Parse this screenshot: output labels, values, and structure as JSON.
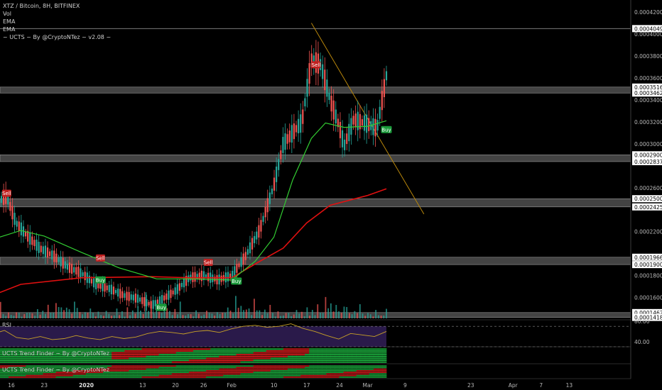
{
  "header": {
    "symbol_line": "XTZ / Bitcoin, 8H, BITFINEX",
    "ind_vol": "Vol",
    "ind_ema1": "EMA",
    "ind_ema2": "EMA",
    "ind_ucts": "~ UCTS ~ By @CryptoNTez ~ v2.08 ~"
  },
  "panels": {
    "rsi_label": "RSI",
    "rsi_ticks": [
      "80.00",
      "40.00"
    ],
    "trend1_label": "UCTS Trend Finder ~ By @CryptoNTez",
    "trend2_label": "UCTS Trend Finder ~ By @CryptoNTez"
  },
  "colors": {
    "background": "#000000",
    "candle_up": "#26a69a",
    "candle_down": "#ef5350",
    "ema_fast": "#32cd32",
    "ema_slow": "#e01010",
    "trendline": "#b8860b",
    "zone": "#5a5a5a",
    "rsi_bg": "#2a1a4a",
    "rsi_line": "#c9a227",
    "buy": "#1a9a3a",
    "sell": "#c0201f"
  },
  "chart_data": {
    "type": "candlestick",
    "title": "XTZ / Bitcoin, 8H, BITFINEX",
    "x_tick_labels": [
      "16",
      "23",
      "2020",
      "13",
      "20",
      "26",
      "Feb",
      "10",
      "17",
      "24",
      "Mar",
      "9",
      "23",
      "Apr",
      "7",
      "13"
    ],
    "y_tick_labels": [
      "0.00042000",
      "0.00040495",
      "0.00040000",
      "0.00038000",
      "0.00036000",
      "0.00035169",
      "0.00034624",
      "0.00034000",
      "0.00032000",
      "0.00030000",
      "0.00029000",
      "0.00028379",
      "0.00026000",
      "0.00025000",
      "0.00024254",
      "0.00022000",
      "0.00019668",
      "0.00019000",
      "0.00018000",
      "0.00016000",
      "0.00014629",
      "0.00014187"
    ],
    "ylim": [
      0.000141,
      0.000431
    ],
    "horizontal_zones": [
      [
        0.00035169,
        0.00034624
      ],
      [
        0.00029,
        0.00028379
      ],
      [
        0.00025,
        0.00024254
      ],
      [
        0.00019668,
        0.00019
      ],
      [
        0.00014629,
        0.00014187
      ]
    ],
    "level_line": 0.00040495,
    "trendline": {
      "from": [
        "Feb 18",
        0.00041
      ],
      "to": [
        "Mar 13",
        0.000236
      ]
    },
    "close_path": [
      [
        "Dec 12",
        0.000245
      ],
      [
        "Dec 15",
        0.000252
      ],
      [
        "Dec 17",
        0.000228
      ],
      [
        "Dec 19",
        0.000218
      ],
      [
        "Dec 22",
        0.000205
      ],
      [
        "Dec 25",
        0.000198
      ],
      [
        "Dec 28",
        0.000188
      ],
      [
        "Dec 31",
        0.000182
      ],
      [
        "Jan 3",
        0.000172
      ],
      [
        "Jan 6",
        0.000168
      ],
      [
        "Jan 9",
        0.000162
      ],
      [
        "Jan 12",
        0.000159
      ],
      [
        "Jan 15",
        0.000153
      ],
      [
        "Jan 17",
        0.000158
      ],
      [
        "Jan 20",
        0.000166
      ],
      [
        "Jan 23",
        0.000178
      ],
      [
        "Jan 26",
        0.00018
      ],
      [
        "Jan 29",
        0.000176
      ],
      [
        "Feb 1",
        0.00018
      ],
      [
        "Feb 4",
        0.000198
      ],
      [
        "Feb 7",
        0.000222
      ],
      [
        "Feb 10",
        0.000262
      ],
      [
        "Feb 12",
        0.0003
      ],
      [
        "Feb 14",
        0.00031
      ],
      [
        "Feb 16",
        0.00032
      ],
      [
        "Feb 18",
        0.000376
      ],
      [
        "Feb 20",
        0.000372
      ],
      [
        "Feb 22",
        0.00034
      ],
      [
        "Feb 24",
        0.000315
      ],
      [
        "Feb 25",
        0.000298
      ],
      [
        "Feb 27",
        0.000322
      ],
      [
        "Mar 1",
        0.000318
      ],
      [
        "Mar 3",
        0.000314
      ],
      [
        "Mar 5",
        0.000362
      ]
    ],
    "ema_fast": [
      [
        "Dec 12",
        0.000213
      ],
      [
        "Dec 18",
        0.000221
      ],
      [
        "Dec 23",
        0.000216
      ],
      [
        "Dec 31",
        0.000201
      ],
      [
        "Jan 8",
        0.000187
      ],
      [
        "Jan 16",
        0.000177
      ],
      [
        "Jan 24",
        0.000177
      ],
      [
        "Feb 1",
        0.000176
      ],
      [
        "Feb 6",
        0.000193
      ],
      [
        "Feb 10",
        0.000215
      ],
      [
        "Feb 14",
        0.000267
      ],
      [
        "Feb 18",
        0.000305
      ],
      [
        "Feb 21",
        0.000319
      ],
      [
        "Feb 25",
        0.000315
      ],
      [
        "Mar 1",
        0.000316
      ],
      [
        "Mar 5",
        0.000321
      ]
    ],
    "ema_slow": [
      [
        "Dec 12",
        0.000162
      ],
      [
        "Dec 18",
        0.000172
      ],
      [
        "Dec 31",
        0.000178
      ],
      [
        "Jan 15",
        0.000179
      ],
      [
        "Jan 23",
        0.000178
      ],
      [
        "Feb 1",
        0.000178
      ],
      [
        "Feb 7",
        0.000193
      ],
      [
        "Feb 12",
        0.000205
      ],
      [
        "Feb 17",
        0.000228
      ],
      [
        "Feb 22",
        0.000244
      ],
      [
        "Mar 1",
        0.000253
      ],
      [
        "Mar 5",
        0.000259
      ]
    ],
    "signals": [
      {
        "label": "Sell",
        "date": "Dec 15",
        "price": 0.000255
      },
      {
        "label": "Sell",
        "date": "Jan 4",
        "price": 0.000196
      },
      {
        "label": "Buy",
        "date": "Jan 4",
        "price": 0.000176
      },
      {
        "label": "Buy",
        "date": "Jan 17",
        "price": 0.000151
      },
      {
        "label": "Sell",
        "date": "Jan 27",
        "price": 0.000192
      },
      {
        "label": "Buy",
        "date": "Feb 2",
        "price": 0.000175
      },
      {
        "label": "Sell",
        "date": "Feb 19",
        "price": 0.000372
      },
      {
        "label": "Buy",
        "date": "Mar 5",
        "price": 0.000313
      }
    ],
    "volume_relative": [
      0.15,
      0.35,
      0.2,
      0.6,
      0.2,
      0.1,
      0.25,
      0.15,
      0.1,
      0.3,
      0.2,
      0.1,
      0.15,
      0.35,
      0.2,
      0.25,
      0.1,
      0.4,
      0.15,
      0.3,
      0.2,
      0.5,
      0.3,
      0.2,
      0.95,
      0.4,
      0.6,
      0.3,
      0.5,
      0.35,
      0.2,
      0.7,
      0.4,
      0.3
    ],
    "rsi_ylim": [
      30,
      80
    ],
    "rsi_levels": [
      70,
      30
    ],
    "rsi": [
      55,
      62,
      48,
      45,
      50,
      44,
      46,
      52,
      47,
      44,
      50,
      46,
      49,
      56,
      60,
      58,
      55,
      60,
      62,
      58,
      65,
      70,
      72,
      68,
      70,
      75,
      66,
      60,
      52,
      45,
      56,
      53,
      50,
      60
    ]
  }
}
